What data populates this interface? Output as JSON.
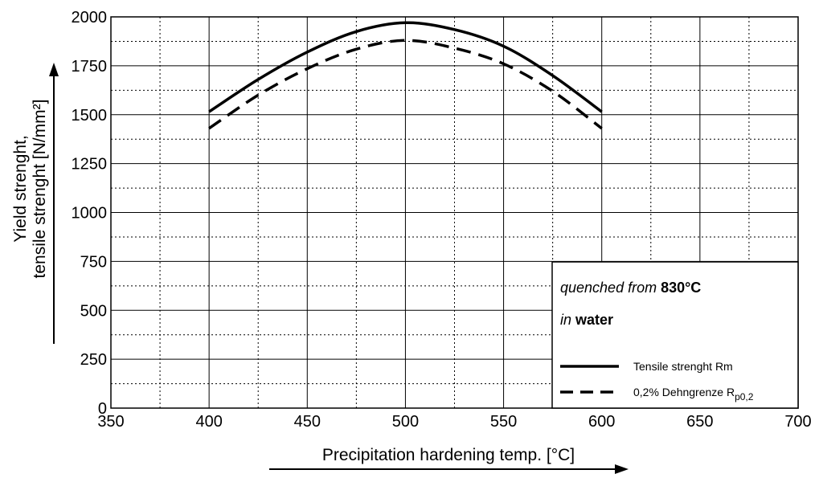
{
  "chart_data": {
    "type": "line",
    "xlabel": "Precipitation hardening temp. [°C]",
    "ylabel_line1": "Yield strenght,",
    "ylabel_line2": "tensile strenght [N/mm²]",
    "xlim": [
      350,
      700
    ],
    "ylim": [
      0,
      2000
    ],
    "x_ticks": [
      350,
      400,
      450,
      500,
      550,
      600,
      650,
      700
    ],
    "y_ticks": [
      0,
      250,
      500,
      750,
      1000,
      1250,
      1500,
      1750,
      2000
    ],
    "grid": true,
    "legend_position": "bottom-right",
    "annotation": {
      "line1_italic": "quenched from ",
      "line1_bold": "830°C",
      "line2_italic": "in ",
      "line2_bold": "water"
    },
    "series": [
      {
        "name": "Tensile strenght Rm",
        "style": "solid",
        "x": [
          400,
          425,
          450,
          475,
          500,
          525,
          550,
          575,
          600
        ],
        "y": [
          1515,
          1680,
          1820,
          1925,
          1970,
          1935,
          1850,
          1700,
          1515
        ]
      },
      {
        "name_main": "0,2% Dehngrenze R",
        "name_sub": "p0,2",
        "style": "dashed",
        "x": [
          400,
          425,
          450,
          475,
          500,
          525,
          550,
          575,
          600
        ],
        "y": [
          1430,
          1600,
          1735,
          1835,
          1880,
          1840,
          1760,
          1620,
          1430
        ]
      }
    ]
  }
}
